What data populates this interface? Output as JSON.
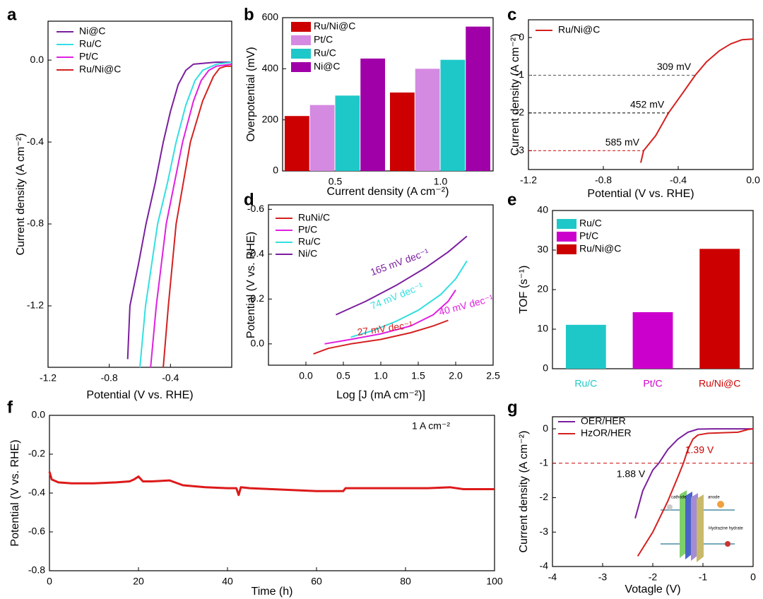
{
  "chart_data": [
    {
      "panel": "a",
      "type": "line",
      "xlabel": "Potential (V vs. RHE)",
      "ylabel": "Current density (A cm⁻²)",
      "xlim": [
        -1.2,
        0.0
      ],
      "xticks": [
        -1.2,
        -0.8,
        -0.4
      ],
      "ylim": [
        -1.5,
        0.19
      ],
      "yticks": [
        {
          "value": 0,
          "label": "0.0"
        },
        -0.4,
        -0.8,
        -1.2
      ],
      "legend": "upper left",
      "series": [
        {
          "name": "Ni@C",
          "color": "#7a1f9e",
          "x": [
            -0.68,
            -0.665,
            -0.61,
            -0.56,
            -0.5,
            -0.447,
            -0.4,
            -0.35,
            -0.3,
            -0.25,
            -0.1,
            0.0
          ],
          "values": [
            -1.46,
            -1.2,
            -1.0,
            -0.8,
            -0.6,
            -0.4,
            -0.25,
            -0.12,
            -0.05,
            -0.02,
            -0.01,
            -0.01
          ]
        },
        {
          "name": "Ru/C",
          "color": "#33dfe0",
          "x": [
            -0.6,
            -0.563,
            -0.484,
            -0.42,
            -0.363,
            -0.3,
            -0.24,
            -0.19,
            -0.1,
            0.0
          ],
          "values": [
            -1.5,
            -1.2,
            -0.8,
            -0.6,
            -0.4,
            -0.22,
            -0.1,
            -0.05,
            -0.02,
            -0.01
          ]
        },
        {
          "name": "Pt/C",
          "color": "#e020e0",
          "x": [
            -0.53,
            -0.493,
            -0.428,
            -0.321,
            -0.25,
            -0.2,
            -0.15,
            -0.1,
            0.0
          ],
          "values": [
            -1.5,
            -1.2,
            -0.8,
            -0.4,
            -0.2,
            -0.1,
            -0.05,
            -0.03,
            -0.02
          ]
        },
        {
          "name": "Ru/Ni@C",
          "color": "#d42020",
          "x": [
            -0.447,
            -0.414,
            -0.363,
            -0.27,
            -0.19,
            -0.12,
            -0.08,
            -0.04,
            0.0
          ],
          "values": [
            -1.5,
            -1.2,
            -0.8,
            -0.4,
            -0.2,
            -0.08,
            -0.04,
            -0.03,
            -0.03
          ]
        }
      ]
    },
    {
      "panel": "b",
      "type": "bar",
      "xlabel": "Current density (A cm⁻²)",
      "ylabel": "Overpotential (mV)",
      "categories": [
        "0.5",
        "1.0"
      ],
      "ylim": [
        0,
        600
      ],
      "yticks": [
        0,
        200,
        400,
        600
      ],
      "legend": "upper left",
      "series": [
        {
          "name": "Ru/Ni@C",
          "color": "#cc0000",
          "values": [
            215,
            307
          ]
        },
        {
          "name": "Pt/C",
          "color": "#d58ae2",
          "values": [
            258,
            400
          ]
        },
        {
          "name": "Ru/C",
          "color": "#1fc8c8",
          "values": [
            295,
            435
          ]
        },
        {
          "name": "Ni@C",
          "color": "#a000a8",
          "values": [
            440,
            565
          ]
        }
      ]
    },
    {
      "panel": "c",
      "type": "line",
      "xlabel": "Potential (V vs. RHE)",
      "ylabel": "Current density (A cm⁻²)",
      "xlim": [
        -1.2,
        0.0
      ],
      "xticks": [
        -1.2,
        -0.8,
        -0.4,
        {
          "value": 0,
          "label": "0.0"
        }
      ],
      "ylim": [
        -3.5,
        0.47
      ],
      "yticks": [
        0,
        -1,
        -2,
        -3
      ],
      "legend": "upper left",
      "series": [
        {
          "name": "Ru/Ni@C",
          "color": "#d42020",
          "x": [
            -0.6,
            -0.585,
            -0.52,
            -0.452,
            -0.38,
            -0.309,
            -0.25,
            -0.18,
            -0.12,
            -0.06,
            0.0
          ],
          "values": [
            -3.32,
            -3.0,
            -2.6,
            -2.0,
            -1.5,
            -1.0,
            -0.65,
            -0.35,
            -0.17,
            -0.06,
            -0.04
          ]
        }
      ],
      "annotations": [
        {
          "text": "309 mV",
          "y": -1,
          "color": "#555555"
        },
        {
          "text": "452 mV",
          "y": -2,
          "color": "#000000"
        },
        {
          "text": "585 mV",
          "y": -3,
          "color": "#cc0000"
        }
      ]
    },
    {
      "panel": "d",
      "type": "line",
      "xlabel": "Log [J (mA cm⁻²)]",
      "ylabel": "Potential (V vs. RHE)",
      "xlim": [
        -0.5,
        2.5
      ],
      "xticks": [
        {
          "value": 0,
          "label": "0.0"
        },
        0.5,
        {
          "value": 1,
          "label": "1.0"
        },
        1.5,
        {
          "value": 2,
          "label": "2.0"
        },
        2.5
      ],
      "ylim": [
        0.095,
        -0.62
      ],
      "yticks": [
        -0.6,
        -0.4,
        -0.2,
        {
          "value": 0,
          "label": "0.0"
        }
      ],
      "legend": "upper left",
      "series": [
        {
          "name": "RuNi/C",
          "color": "#d42020",
          "x": [
            0.1,
            0.3,
            0.6,
            1.0,
            1.4,
            1.7,
            1.9
          ],
          "values": [
            0.045,
            0.02,
            0.0,
            -0.02,
            -0.05,
            -0.08,
            -0.105
          ]
        },
        {
          "name": "Pt/C",
          "color": "#e020e0",
          "x": [
            0.25,
            0.6,
            1.0,
            1.4,
            1.7,
            1.9,
            2.0
          ],
          "values": [
            0.0,
            -0.02,
            -0.045,
            -0.08,
            -0.13,
            -0.19,
            -0.24
          ]
        },
        {
          "name": "Ru/C",
          "color": "#33dfe0",
          "x": [
            0.6,
            0.9,
            1.2,
            1.5,
            1.8,
            2.0,
            2.15
          ],
          "values": [
            -0.03,
            -0.06,
            -0.1,
            -0.15,
            -0.22,
            -0.29,
            -0.37
          ]
        },
        {
          "name": "Ni/C",
          "color": "#7a1f9e",
          "x": [
            0.4,
            0.8,
            1.2,
            1.6,
            1.9,
            2.15
          ],
          "values": [
            -0.13,
            -0.19,
            -0.26,
            -0.34,
            -0.41,
            -0.48
          ]
        }
      ],
      "annotations": [
        {
          "text": "27 mV dec⁻¹",
          "color": "#d42020"
        },
        {
          "text": "40 mV dec⁻¹",
          "color": "#e020e0"
        },
        {
          "text": "74 mV dec⁻¹",
          "color": "#33dfe0"
        },
        {
          "text": "165 mV dec⁻¹",
          "color": "#7a1f9e"
        }
      ]
    },
    {
      "panel": "e",
      "type": "bar",
      "ylabel": "TOF (s⁻¹)",
      "categories": [
        "Ru/C",
        "Pt/C",
        "Ru/Ni@C"
      ],
      "values": [
        11.1,
        14.3,
        30.3
      ],
      "colors": [
        "#1fc8c8",
        "#cc00cc",
        "#cc0000"
      ],
      "ylim": [
        0,
        40
      ],
      "yticks": [
        0,
        10,
        20,
        30,
        40
      ],
      "legend": "upper left"
    },
    {
      "panel": "f",
      "type": "line",
      "xlabel": "Time (h)",
      "ylabel": "Potential (V vs. RHE)",
      "xlim": [
        0,
        100
      ],
      "xticks": [
        0,
        20,
        40,
        60,
        80,
        100
      ],
      "ylim": [
        -0.8,
        0.0
      ],
      "yticks": [
        {
          "value": 0,
          "label": "0.0"
        },
        -0.2,
        -0.4,
        -0.6,
        -0.8
      ],
      "series": [
        {
          "color": "#dd1a1a",
          "x": [
            0,
            0.5,
            2,
            5,
            10,
            15,
            18,
            19,
            20,
            21,
            23,
            27,
            30,
            35,
            40,
            42,
            42.5,
            43,
            45,
            50,
            55,
            60,
            65,
            66,
            66.5,
            70,
            75,
            80,
            85,
            90,
            93,
            95,
            100
          ],
          "values": [
            -0.29,
            -0.33,
            -0.345,
            -0.35,
            -0.35,
            -0.345,
            -0.34,
            -0.33,
            -0.315,
            -0.34,
            -0.34,
            -0.335,
            -0.36,
            -0.37,
            -0.375,
            -0.375,
            -0.41,
            -0.37,
            -0.375,
            -0.38,
            -0.385,
            -0.39,
            -0.39,
            -0.39,
            -0.375,
            -0.375,
            -0.375,
            -0.375,
            -0.375,
            -0.37,
            -0.38,
            -0.38,
            -0.38
          ]
        }
      ],
      "annotations": [
        {
          "text": "1 A cm⁻²",
          "color": "#000000"
        }
      ]
    },
    {
      "panel": "g",
      "type": "line",
      "xlabel": "Votagle (V)",
      "ylabel": "Current density (A cm⁻²)",
      "xlim": [
        -4,
        0
      ],
      "xticks": [
        -4,
        -3,
        -2,
        -1,
        0
      ],
      "ylim": [
        -4,
        0.35
      ],
      "yticks": [
        0,
        -1,
        -2,
        -3,
        -4
      ],
      "legend": "upper left",
      "hline": -1,
      "series": [
        {
          "name": "OER/HER",
          "color": "#7a1f9e",
          "x": [
            -2.35,
            -2.2,
            -2.0,
            -1.88,
            -1.7,
            -1.5,
            -1.3,
            -1.1,
            -0.8,
            0
          ],
          "values": [
            -2.6,
            -1.8,
            -1.2,
            -1.0,
            -0.6,
            -0.3,
            -0.1,
            -0.01,
            0,
            0
          ]
        },
        {
          "name": "HzOR/HER",
          "color": "#d42020",
          "x": [
            -2.3,
            -2.0,
            -1.7,
            -1.5,
            -1.39,
            -1.3,
            -1.2,
            -1.1,
            -0.9,
            -0.3,
            -0.1,
            0
          ],
          "values": [
            -3.7,
            -3.0,
            -2.1,
            -1.4,
            -1.0,
            -0.6,
            -0.3,
            -0.18,
            -0.13,
            -0.1,
            -0.02,
            0
          ]
        }
      ],
      "annotations": [
        {
          "text": "1.88 V",
          "color": "#000000"
        },
        {
          "text": "1.39 V",
          "color": "#cc0000"
        }
      ],
      "inset_labels": [
        "cathode",
        "anode",
        "Hydrazine hydrate"
      ]
    }
  ]
}
